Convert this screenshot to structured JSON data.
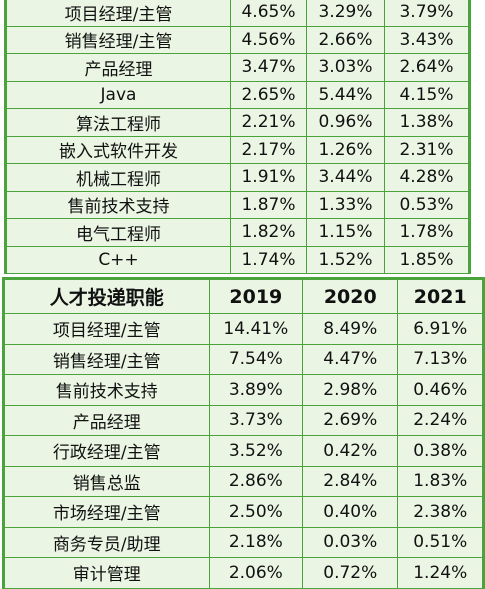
{
  "top_table": {
    "rows": [
      [
        "项目经理/主管",
        "4.65%",
        "3.29%",
        "3.79%"
      ],
      [
        "销售经理/主管",
        "4.56%",
        "2.66%",
        "3.43%"
      ],
      [
        "产品经理",
        "3.47%",
        "3.03%",
        "2.64%"
      ],
      [
        "Java",
        "2.65%",
        "5.44%",
        "4.15%"
      ],
      [
        "算法工程师",
        "2.21%",
        "0.96%",
        "1.38%"
      ],
      [
        "嵌入式软件开发",
        "2.17%",
        "1.26%",
        "2.31%"
      ],
      [
        "机械工程师",
        "1.91%",
        "3.44%",
        "4.28%"
      ],
      [
        "售前技术支持",
        "1.87%",
        "1.33%",
        "0.53%"
      ],
      [
        "电气工程师",
        "1.82%",
        "1.15%",
        "1.78%"
      ],
      [
        "C++",
        "1.74%",
        "1.52%",
        "1.85%"
      ]
    ]
  },
  "bottom_table": {
    "headers": [
      "人才投递职能",
      "2019",
      "2020",
      "2021"
    ],
    "rows": [
      [
        "项目经理/主管",
        "14.41%",
        "8.49%",
        "6.91%"
      ],
      [
        "销售经理/主管",
        "7.54%",
        "4.47%",
        "7.13%"
      ],
      [
        "售前技术支持",
        "3.89%",
        "2.98%",
        "0.46%"
      ],
      [
        "产品经理",
        "3.73%",
        "2.69%",
        "2.24%"
      ],
      [
        "行政经理/主管",
        "3.52%",
        "0.42%",
        "0.38%"
      ],
      [
        "销售总监",
        "2.86%",
        "2.84%",
        "1.83%"
      ],
      [
        "市场经理/主管",
        "2.50%",
        "0.40%",
        "2.38%"
      ],
      [
        "商务专员/助理",
        "2.18%",
        "0.03%",
        "0.51%"
      ],
      [
        "审计管理",
        "2.06%",
        "0.72%",
        "1.24%"
      ]
    ]
  },
  "colors": {
    "border": "#4aa33b",
    "cell_background": "#ebf5e4",
    "page_background": "#ffffff"
  }
}
